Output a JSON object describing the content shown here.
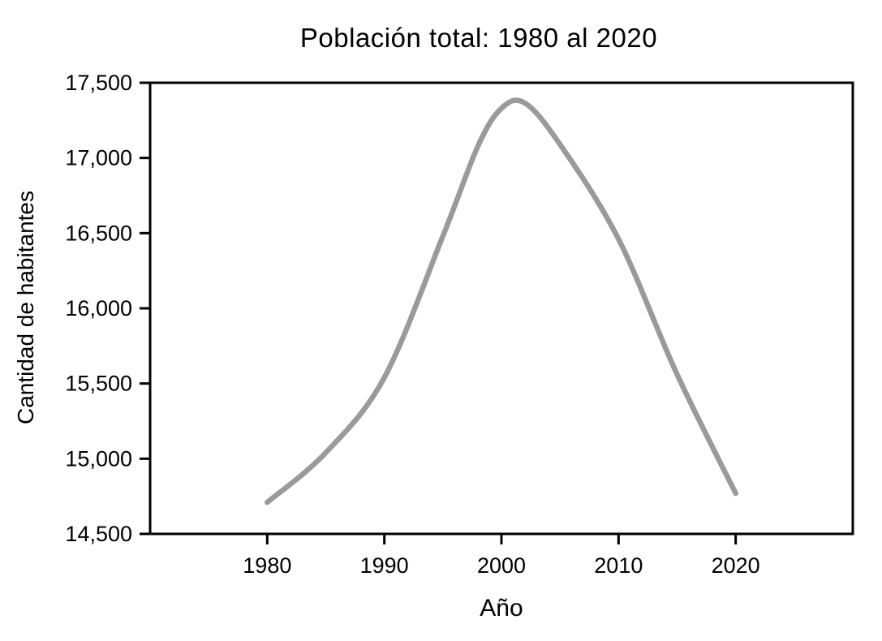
{
  "figure": {
    "background": "#ffffff",
    "text_color": "#000000",
    "frame_color": "#000000"
  },
  "chart_data": {
    "type": "line",
    "title": "Población total: 1980 al 2020",
    "xlabel": "Año",
    "ylabel": "Cantidad de habitantes",
    "x": [
      1980,
      1985,
      1990,
      1995,
      1998,
      2000,
      2002,
      2005,
      2010,
      2015,
      2020
    ],
    "y": [
      14710,
      15040,
      15540,
      16480,
      17080,
      17330,
      17365,
      17090,
      16460,
      15560,
      14770
    ],
    "series_name": "Población total",
    "xlim": [
      1970,
      2030
    ],
    "ylim": [
      14500,
      17500
    ],
    "xticks": [
      1980,
      1990,
      2000,
      2010,
      2020
    ],
    "xtick_labels": [
      "1980",
      "1990",
      "2000",
      "2010",
      "2020"
    ],
    "yticks": [
      14500,
      15000,
      15500,
      16000,
      16500,
      17000,
      17500
    ],
    "ytick_labels": [
      "14,500",
      "15,000",
      "15,500",
      "16,000",
      "16,500",
      "17,000",
      "17,500"
    ],
    "line_color": "#9a9a9a",
    "line_width": 6.5,
    "grid": false,
    "legend": null,
    "peak": {
      "year": 2002,
      "value": 17365
    },
    "start": {
      "year": 1980,
      "value": 14710
    },
    "end": {
      "year": 2020,
      "value": 14770
    }
  }
}
